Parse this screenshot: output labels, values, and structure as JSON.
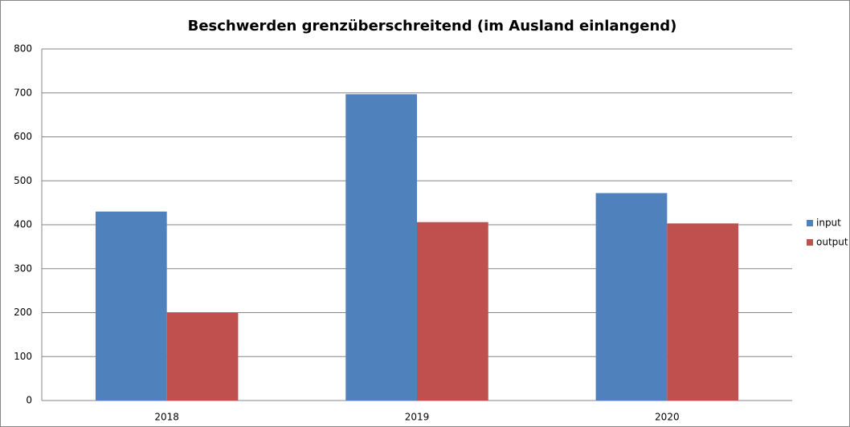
{
  "chart_data": {
    "type": "bar",
    "title": "Beschwerden grenzüberschreitend (im Ausland einlangend)",
    "categories": [
      "2018",
      "2019",
      "2020"
    ],
    "series": [
      {
        "name": "input",
        "color": "#4f81bd",
        "values": [
          430,
          697,
          472
        ]
      },
      {
        "name": "output",
        "color": "#c0504d",
        "values": [
          200,
          406,
          403
        ]
      }
    ],
    "ylim": [
      0,
      800
    ],
    "yticks": [
      0,
      100,
      200,
      300,
      400,
      500,
      600,
      700,
      800
    ],
    "grid": true,
    "legend": "right"
  }
}
